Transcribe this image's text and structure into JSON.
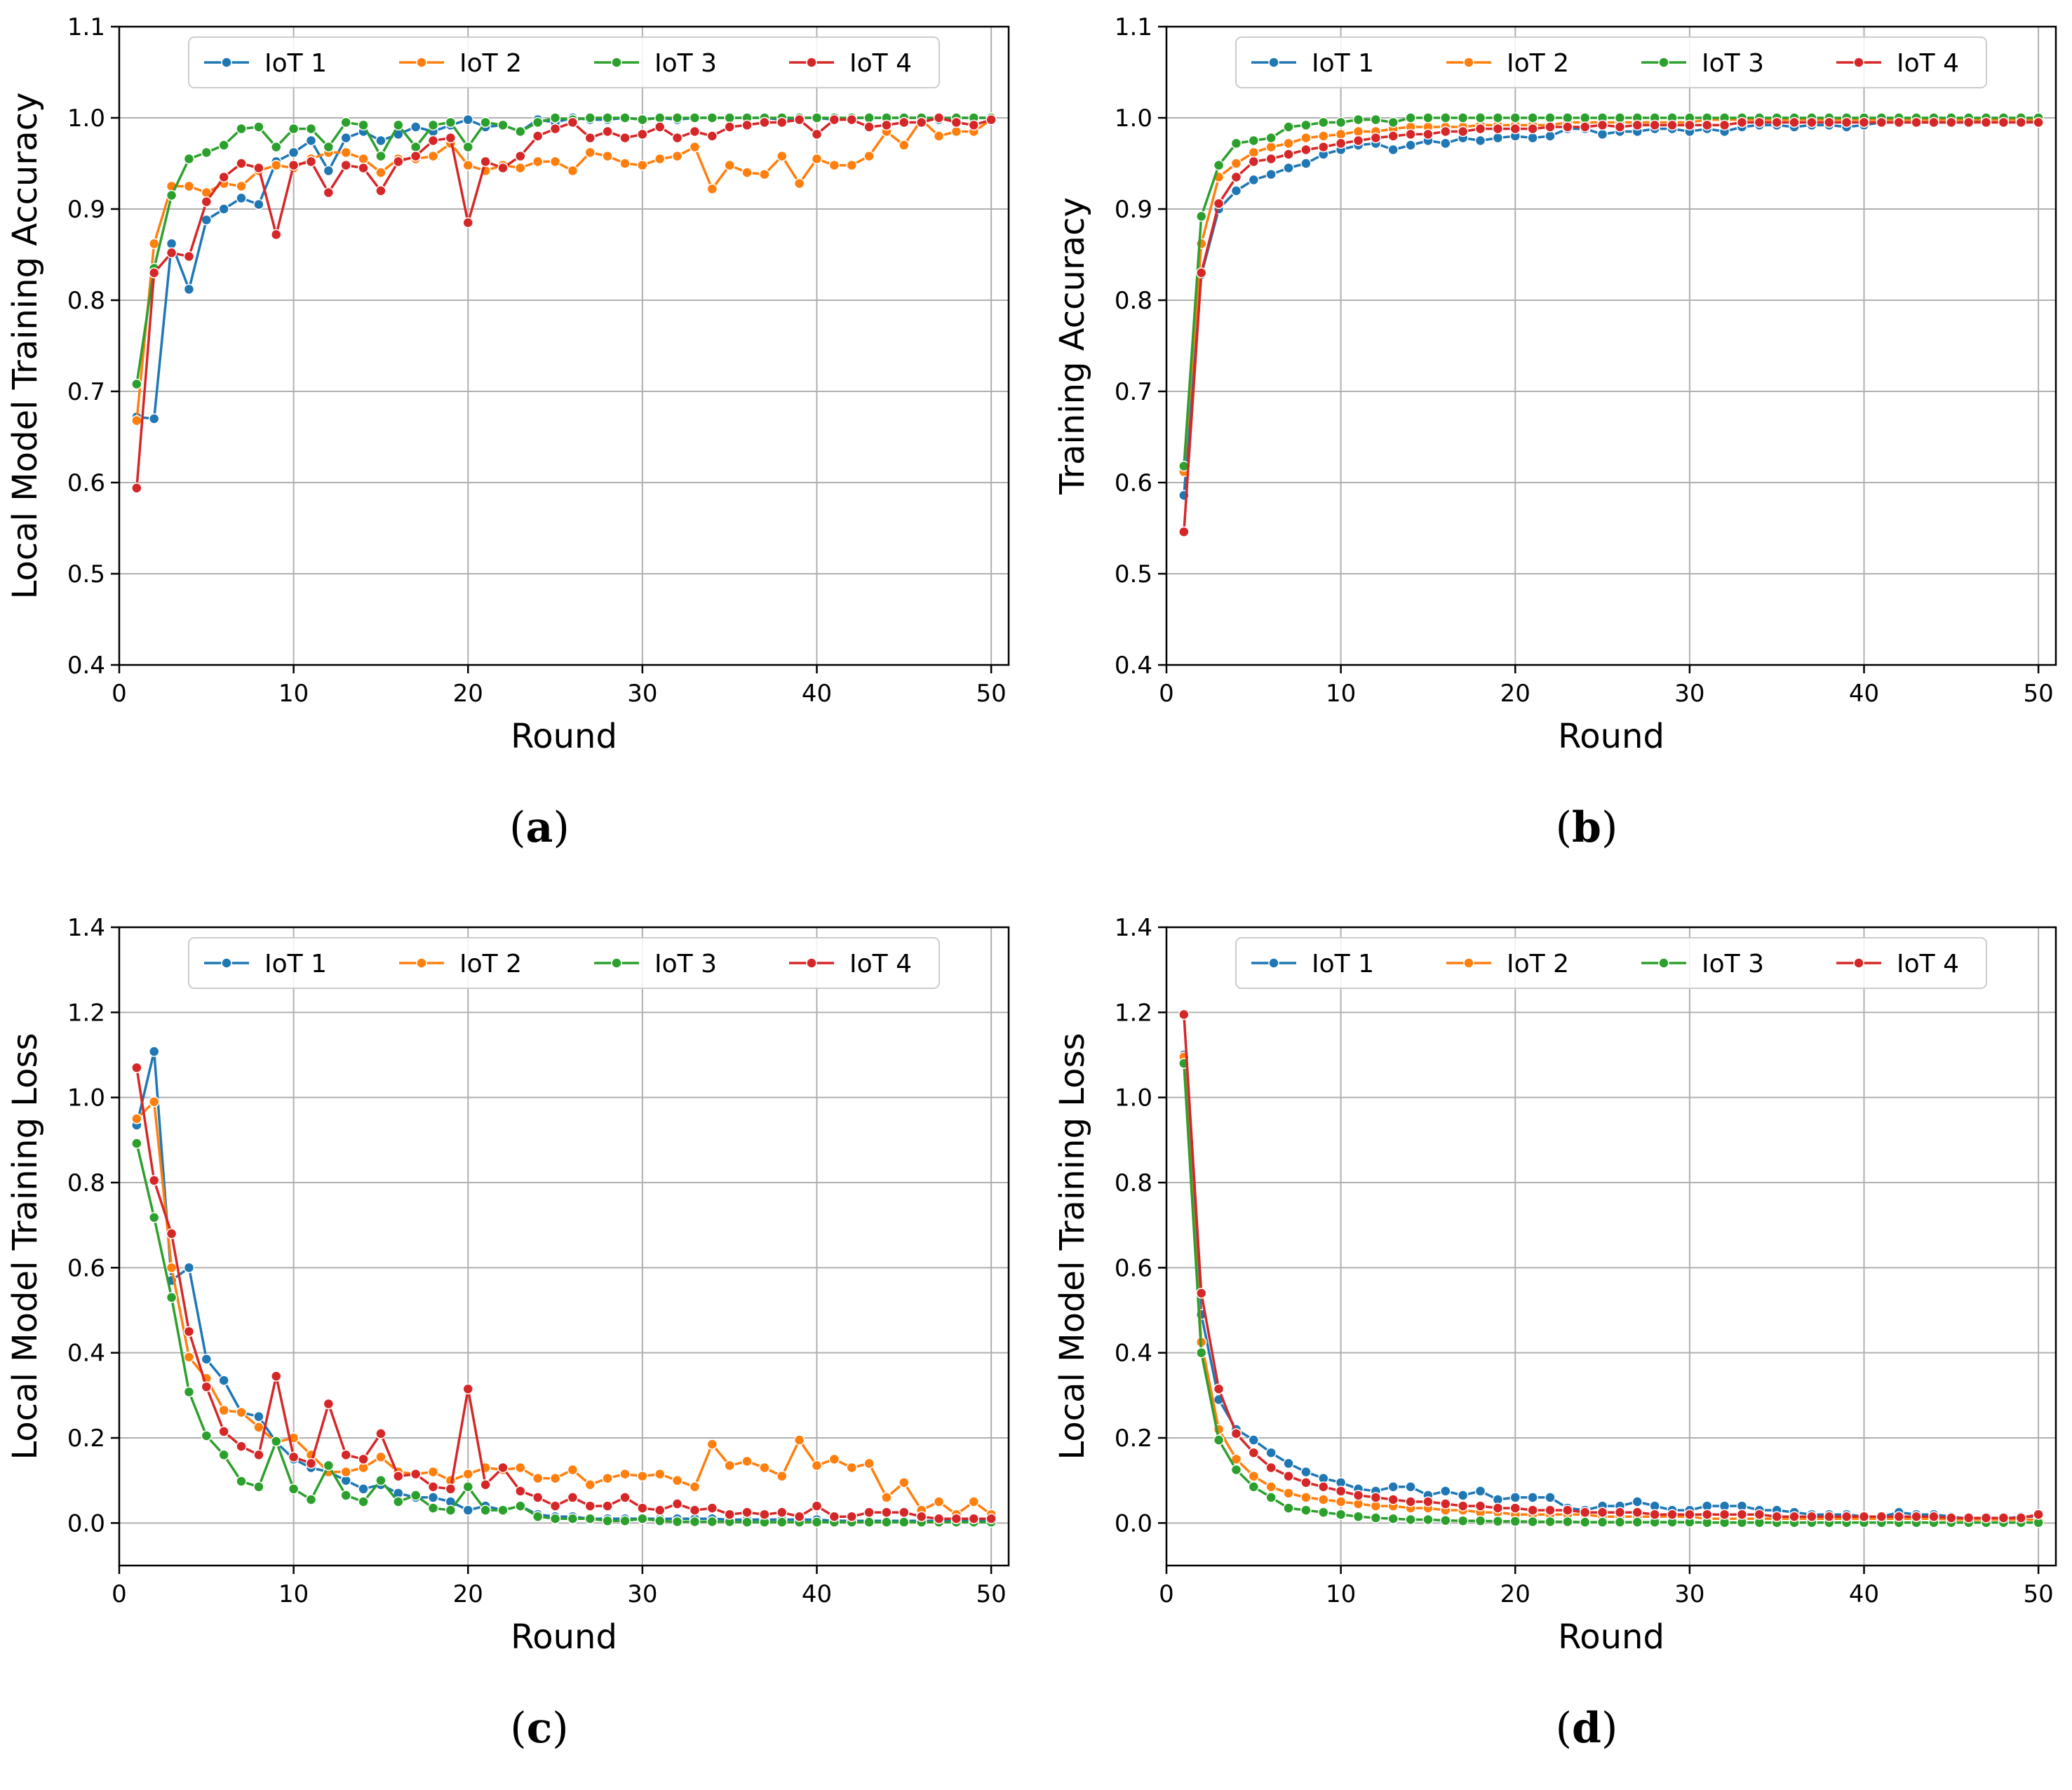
{
  "colors": {
    "iot1": "#1f77b4",
    "iot2": "#ff7f0e",
    "iot3": "#2ca02c",
    "iot4": "#d62728"
  },
  "chart_data": [
    {
      "id": "a",
      "caption": {
        "open": "(",
        "letter": "a",
        "close": ")"
      },
      "type": "line",
      "title": "",
      "xlabel": "Round",
      "ylabel": "Local Model Training Accuracy",
      "xlim": [
        0,
        51
      ],
      "ylim": [
        0.4,
        1.1
      ],
      "xticks": [
        0,
        10,
        20,
        30,
        40,
        50
      ],
      "yticks": [
        0.4,
        0.5,
        0.6,
        0.7,
        0.8,
        0.9,
        1.0,
        1.1
      ],
      "ytick_labels": [
        "0.4",
        "0.5",
        "0.6",
        "0.7",
        "0.8",
        "0.9",
        "1.0",
        "1.1"
      ],
      "grid": true,
      "legend": "top-center",
      "series": [
        {
          "name": "IoT 1",
          "color_key": "iot1",
          "values": [
            0.672,
            0.67,
            0.862,
            0.812,
            0.888,
            0.9,
            0.912,
            0.905,
            0.952,
            0.962,
            0.975,
            0.942,
            0.978,
            0.985,
            0.975,
            0.982,
            0.99,
            0.985,
            0.992,
            0.998,
            0.99,
            0.992,
            0.985,
            0.998,
            0.995,
            1.0,
            0.998,
            0.998,
            1.0,
            0.998,
            1.0,
            0.998,
            1.0,
            1.0,
            1.0,
            1.0,
            1.0,
            0.998,
            1.0,
            1.0,
            0.998,
            1.0,
            1.0,
            1.0,
            1.0,
            1.0,
            0.998,
            1.0,
            1.0,
            1.0
          ]
        },
        {
          "name": "IoT 2",
          "color_key": "iot2",
          "values": [
            0.668,
            0.862,
            0.925,
            0.925,
            0.918,
            0.928,
            0.925,
            0.942,
            0.948,
            0.945,
            0.955,
            0.962,
            0.962,
            0.955,
            0.94,
            0.955,
            0.955,
            0.958,
            0.972,
            0.948,
            0.942,
            0.948,
            0.945,
            0.952,
            0.952,
            0.942,
            0.962,
            0.958,
            0.95,
            0.948,
            0.955,
            0.958,
            0.968,
            0.922,
            0.948,
            0.94,
            0.938,
            0.958,
            0.928,
            0.955,
            0.948,
            0.948,
            0.958,
            0.985,
            0.97,
            0.998,
            0.98,
            0.985,
            0.985,
            0.998
          ]
        },
        {
          "name": "IoT 3",
          "color_key": "iot3",
          "values": [
            0.708,
            0.835,
            0.915,
            0.955,
            0.962,
            0.97,
            0.988,
            0.99,
            0.968,
            0.988,
            0.988,
            0.968,
            0.995,
            0.992,
            0.958,
            0.992,
            0.968,
            0.992,
            0.995,
            0.968,
            0.995,
            0.992,
            0.985,
            0.995,
            1.0,
            0.998,
            1.0,
            1.0,
            1.0,
            0.998,
            1.0,
            1.0,
            1.0,
            1.0,
            1.0,
            1.0,
            1.0,
            1.0,
            1.0,
            1.0,
            1.0,
            1.0,
            1.0,
            1.0,
            1.0,
            1.0,
            1.0,
            1.0,
            1.0,
            1.0
          ]
        },
        {
          "name": "IoT 4",
          "color_key": "iot4",
          "values": [
            0.594,
            0.83,
            0.852,
            0.848,
            0.908,
            0.935,
            0.95,
            0.945,
            0.872,
            0.948,
            0.952,
            0.918,
            0.948,
            0.945,
            0.92,
            0.952,
            0.958,
            0.975,
            0.978,
            0.885,
            0.952,
            0.945,
            0.958,
            0.98,
            0.988,
            0.995,
            0.978,
            0.985,
            0.978,
            0.982,
            0.99,
            0.978,
            0.985,
            0.98,
            0.99,
            0.992,
            0.995,
            0.995,
            0.998,
            0.982,
            0.998,
            0.998,
            0.99,
            0.992,
            0.995,
            0.995,
            1.0,
            0.995,
            0.992,
            0.998
          ]
        }
      ]
    },
    {
      "id": "b",
      "caption": {
        "open": "(",
        "letter": "b",
        "close": ")"
      },
      "type": "line",
      "title": "",
      "xlabel": "Round",
      "ylabel": "Training Accuracy",
      "xlim": [
        0,
        51
      ],
      "ylim": [
        0.4,
        1.1
      ],
      "xticks": [
        0,
        10,
        20,
        30,
        40,
        50
      ],
      "yticks": [
        0.4,
        0.5,
        0.6,
        0.7,
        0.8,
        0.9,
        1.0,
        1.1
      ],
      "ytick_labels": [
        "0.4",
        "0.5",
        "0.6",
        "0.7",
        "0.8",
        "0.9",
        "1.0",
        "1.1"
      ],
      "grid": true,
      "legend": "top-center",
      "series": [
        {
          "name": "IoT 1",
          "color_key": "iot1",
          "values": [
            0.586,
            0.828,
            0.9,
            0.92,
            0.932,
            0.938,
            0.945,
            0.95,
            0.96,
            0.965,
            0.97,
            0.972,
            0.965,
            0.97,
            0.975,
            0.972,
            0.978,
            0.975,
            0.978,
            0.98,
            0.978,
            0.98,
            0.988,
            0.988,
            0.982,
            0.985,
            0.985,
            0.988,
            0.988,
            0.985,
            0.988,
            0.985,
            0.99,
            0.992,
            0.992,
            0.99,
            0.992,
            0.992,
            0.99,
            0.992,
            0.995,
            0.995,
            0.995,
            0.995,
            0.995,
            0.995,
            0.998,
            0.998,
            0.998,
            0.995
          ]
        },
        {
          "name": "IoT 2",
          "color_key": "iot2",
          "values": [
            0.612,
            0.862,
            0.935,
            0.95,
            0.962,
            0.968,
            0.972,
            0.978,
            0.98,
            0.982,
            0.985,
            0.985,
            0.988,
            0.99,
            0.99,
            0.99,
            0.99,
            0.992,
            0.992,
            0.992,
            0.992,
            0.992,
            0.995,
            0.995,
            0.995,
            0.995,
            0.995,
            0.995,
            0.995,
            0.995,
            0.998,
            0.998,
            0.998,
            0.998,
            0.998,
            0.998,
            0.998,
            0.998,
            0.998,
            0.998,
            0.998,
            0.998,
            0.998,
            0.998,
            0.998,
            0.998,
            0.998,
            0.998,
            0.998,
            0.998
          ]
        },
        {
          "name": "IoT 3",
          "color_key": "iot3",
          "values": [
            0.618,
            0.892,
            0.948,
            0.972,
            0.975,
            0.978,
            0.99,
            0.992,
            0.995,
            0.995,
            0.998,
            0.998,
            0.995,
            1.0,
            1.0,
            1.0,
            1.0,
            1.0,
            1.0,
            1.0,
            1.0,
            1.0,
            1.0,
            1.0,
            1.0,
            1.0,
            1.0,
            1.0,
            1.0,
            1.0,
            1.0,
            1.0,
            1.0,
            1.0,
            1.0,
            1.0,
            1.0,
            1.0,
            1.0,
            1.0,
            1.0,
            1.0,
            1.0,
            1.0,
            1.0,
            1.0,
            1.0,
            1.0,
            1.0,
            1.0
          ]
        },
        {
          "name": "IoT 4",
          "color_key": "iot4",
          "values": [
            0.546,
            0.83,
            0.906,
            0.935,
            0.952,
            0.955,
            0.96,
            0.965,
            0.968,
            0.972,
            0.975,
            0.978,
            0.98,
            0.982,
            0.982,
            0.985,
            0.985,
            0.988,
            0.988,
            0.988,
            0.988,
            0.99,
            0.99,
            0.99,
            0.992,
            0.99,
            0.992,
            0.992,
            0.992,
            0.992,
            0.992,
            0.992,
            0.995,
            0.995,
            0.995,
            0.995,
            0.995,
            0.995,
            0.995,
            0.995,
            0.995,
            0.995,
            0.995,
            0.995,
            0.995,
            0.995,
            0.995,
            0.995,
            0.995,
            0.995
          ]
        }
      ]
    },
    {
      "id": "c",
      "caption": {
        "open": "(",
        "letter": "c",
        "close": ")"
      },
      "type": "line",
      "title": "",
      "xlabel": "Round",
      "ylabel": "Local Model Training Loss",
      "xlim": [
        0,
        51
      ],
      "ylim": [
        -0.1,
        1.4
      ],
      "xticks": [
        0,
        10,
        20,
        30,
        40,
        50
      ],
      "yticks": [
        0.0,
        0.2,
        0.4,
        0.6,
        0.8,
        1.0,
        1.2,
        1.4
      ],
      "ytick_labels": [
        "0.0",
        "0.2",
        "0.4",
        "0.6",
        "0.8",
        "1.0",
        "1.2",
        "1.4"
      ],
      "grid": true,
      "legend": "top-center",
      "series": [
        {
          "name": "IoT 1",
          "color_key": "iot1",
          "values": [
            0.935,
            1.108,
            0.57,
            0.6,
            0.385,
            0.335,
            0.26,
            0.25,
            0.19,
            0.15,
            0.13,
            0.12,
            0.1,
            0.08,
            0.09,
            0.07,
            0.06,
            0.06,
            0.05,
            0.03,
            0.04,
            0.03,
            0.04,
            0.02,
            0.015,
            0.015,
            0.01,
            0.01,
            0.01,
            0.01,
            0.01,
            0.01,
            0.01,
            0.01,
            0.008,
            0.008,
            0.008,
            0.008,
            0.008,
            0.008,
            0.005,
            0.005,
            0.005,
            0.005,
            0.005,
            0.005,
            0.005,
            0.005,
            0.005,
            0.005
          ]
        },
        {
          "name": "IoT 2",
          "color_key": "iot2",
          "values": [
            0.95,
            0.99,
            0.6,
            0.39,
            0.34,
            0.265,
            0.26,
            0.225,
            0.19,
            0.2,
            0.16,
            0.12,
            0.12,
            0.13,
            0.155,
            0.12,
            0.115,
            0.12,
            0.1,
            0.115,
            0.13,
            0.125,
            0.13,
            0.105,
            0.105,
            0.125,
            0.09,
            0.105,
            0.115,
            0.11,
            0.115,
            0.1,
            0.085,
            0.185,
            0.135,
            0.145,
            0.13,
            0.11,
            0.195,
            0.135,
            0.15,
            0.13,
            0.14,
            0.06,
            0.095,
            0.03,
            0.05,
            0.02,
            0.05,
            0.02
          ]
        },
        {
          "name": "IoT 3",
          "color_key": "iot3",
          "values": [
            0.892,
            0.718,
            0.53,
            0.308,
            0.205,
            0.16,
            0.098,
            0.085,
            0.192,
            0.08,
            0.055,
            0.135,
            0.065,
            0.05,
            0.1,
            0.05,
            0.065,
            0.035,
            0.03,
            0.085,
            0.03,
            0.03,
            0.04,
            0.015,
            0.01,
            0.01,
            0.01,
            0.005,
            0.005,
            0.01,
            0.005,
            0.003,
            0.003,
            0.003,
            0.003,
            0.002,
            0.002,
            0.002,
            0.002,
            0.002,
            0.002,
            0.002,
            0.002,
            0.002,
            0.002,
            0.002,
            0.002,
            0.002,
            0.002,
            0.002
          ]
        },
        {
          "name": "IoT 4",
          "color_key": "iot4",
          "values": [
            1.07,
            0.805,
            0.68,
            0.45,
            0.32,
            0.215,
            0.18,
            0.16,
            0.345,
            0.155,
            0.14,
            0.28,
            0.16,
            0.15,
            0.21,
            0.11,
            0.115,
            0.085,
            0.08,
            0.315,
            0.09,
            0.13,
            0.075,
            0.06,
            0.04,
            0.06,
            0.04,
            0.04,
            0.06,
            0.035,
            0.03,
            0.045,
            0.03,
            0.035,
            0.02,
            0.025,
            0.02,
            0.025,
            0.015,
            0.04,
            0.015,
            0.015,
            0.025,
            0.025,
            0.025,
            0.015,
            0.01,
            0.01,
            0.01,
            0.01
          ]
        }
      ]
    },
    {
      "id": "d",
      "caption": {
        "open": "(",
        "letter": "d",
        "close": ")"
      },
      "type": "line",
      "title": "",
      "xlabel": "Round",
      "ylabel": "Local Model Training Loss",
      "xlim": [
        0,
        51
      ],
      "ylim": [
        -0.1,
        1.4
      ],
      "xticks": [
        0,
        10,
        20,
        30,
        40,
        50
      ],
      "yticks": [
        0.0,
        0.2,
        0.4,
        0.6,
        0.8,
        1.0,
        1.2,
        1.4
      ],
      "ytick_labels": [
        "0.0",
        "0.2",
        "0.4",
        "0.6",
        "0.8",
        "1.0",
        "1.2",
        "1.4"
      ],
      "grid": true,
      "legend": "top-center",
      "series": [
        {
          "name": "IoT 1",
          "color_key": "iot1",
          "values": [
            1.1,
            0.49,
            0.29,
            0.22,
            0.195,
            0.165,
            0.14,
            0.12,
            0.105,
            0.095,
            0.08,
            0.075,
            0.085,
            0.085,
            0.065,
            0.075,
            0.065,
            0.075,
            0.055,
            0.06,
            0.06,
            0.06,
            0.035,
            0.03,
            0.04,
            0.04,
            0.05,
            0.04,
            0.03,
            0.03,
            0.04,
            0.04,
            0.04,
            0.03,
            0.03,
            0.025,
            0.02,
            0.02,
            0.02,
            0.015,
            0.015,
            0.025,
            0.02,
            0.02,
            0.015,
            0.01,
            0.01,
            0.01,
            0.015,
            0.015
          ]
        },
        {
          "name": "IoT 2",
          "color_key": "iot2",
          "values": [
            1.095,
            0.425,
            0.22,
            0.15,
            0.11,
            0.085,
            0.07,
            0.06,
            0.055,
            0.05,
            0.045,
            0.04,
            0.04,
            0.035,
            0.035,
            0.03,
            0.03,
            0.025,
            0.025,
            0.02,
            0.02,
            0.02,
            0.02,
            0.02,
            0.015,
            0.015,
            0.015,
            0.015,
            0.015,
            0.015,
            0.01,
            0.01,
            0.01,
            0.01,
            0.01,
            0.01,
            0.01,
            0.01,
            0.01,
            0.01,
            0.01,
            0.01,
            0.01,
            0.01,
            0.008,
            0.008,
            0.008,
            0.008,
            0.008,
            0.008
          ]
        },
        {
          "name": "IoT 3",
          "color_key": "iot3",
          "values": [
            1.08,
            0.4,
            0.195,
            0.125,
            0.085,
            0.06,
            0.035,
            0.03,
            0.025,
            0.02,
            0.015,
            0.012,
            0.01,
            0.008,
            0.008,
            0.006,
            0.005,
            0.005,
            0.004,
            0.004,
            0.003,
            0.003,
            0.003,
            0.002,
            0.002,
            0.002,
            0.002,
            0.002,
            0.002,
            0.002,
            0.001,
            0.001,
            0.001,
            0.001,
            0.001,
            0.001,
            0.001,
            0.001,
            0.001,
            0.001,
            0.001,
            0.001,
            0.001,
            0.001,
            0.001,
            0.001,
            0.001,
            0.001,
            0.001,
            0.001
          ]
        },
        {
          "name": "IoT 4",
          "color_key": "iot4",
          "values": [
            1.195,
            0.54,
            0.315,
            0.21,
            0.165,
            0.13,
            0.11,
            0.095,
            0.085,
            0.075,
            0.065,
            0.06,
            0.055,
            0.05,
            0.05,
            0.045,
            0.04,
            0.04,
            0.035,
            0.035,
            0.03,
            0.03,
            0.03,
            0.025,
            0.025,
            0.025,
            0.025,
            0.02,
            0.02,
            0.02,
            0.02,
            0.02,
            0.02,
            0.02,
            0.015,
            0.015,
            0.015,
            0.015,
            0.015,
            0.015,
            0.015,
            0.015,
            0.015,
            0.015,
            0.012,
            0.012,
            0.012,
            0.012,
            0.012,
            0.02
          ]
        }
      ]
    }
  ]
}
